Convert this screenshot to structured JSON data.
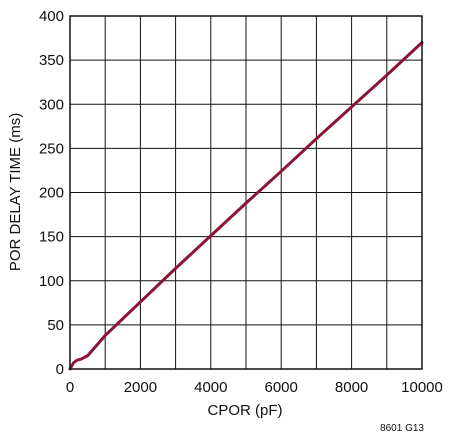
{
  "chart_data": {
    "type": "line",
    "title": "",
    "xlabel": "CPOR (pF)",
    "ylabel": "POR DELAY TIME (ms)",
    "xlim": [
      0,
      10000
    ],
    "ylim": [
      0,
      400
    ],
    "x_ticks": [
      0,
      2000,
      4000,
      6000,
      8000,
      10000
    ],
    "y_ticks": [
      0,
      50,
      100,
      150,
      200,
      250,
      300,
      350,
      400
    ],
    "x_tick_labels": [
      "0",
      "2000",
      "4000",
      "6000",
      "8000",
      "10000"
    ],
    "y_tick_labels": [
      "0",
      "50",
      "100",
      "150",
      "200",
      "250",
      "300",
      "350",
      "400"
    ],
    "grid": true,
    "figure_code": "8601 G13",
    "colors": {
      "series": "#8c1434",
      "grid": "#111111",
      "frame": "#111111"
    },
    "series": [
      {
        "x": [
          0,
          100,
          200,
          300,
          500,
          1000,
          2000,
          3000,
          4000,
          5000,
          6000,
          7000,
          8000,
          9000,
          10000
        ],
        "y": [
          0,
          7,
          10,
          11,
          15,
          38,
          76,
          114,
          151,
          188,
          224,
          261,
          297,
          333,
          370
        ]
      }
    ]
  }
}
